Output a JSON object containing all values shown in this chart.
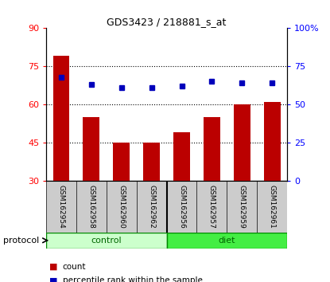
{
  "title": "GDS3423 / 218881_s_at",
  "samples": [
    "GSM162954",
    "GSM162958",
    "GSM162960",
    "GSM162962",
    "GSM162956",
    "GSM162957",
    "GSM162959",
    "GSM162961"
  ],
  "counts": [
    79,
    55,
    45,
    45,
    49,
    55,
    60,
    61
  ],
  "percentiles": [
    68,
    63,
    61,
    61,
    62,
    65,
    64,
    64
  ],
  "groups": [
    "control",
    "control",
    "control",
    "control",
    "diet",
    "diet",
    "diet",
    "diet"
  ],
  "left_ylim": [
    30,
    90
  ],
  "left_yticks": [
    30,
    45,
    60,
    75,
    90
  ],
  "right_ylim": [
    0,
    100
  ],
  "right_yticks": [
    0,
    25,
    50,
    75,
    100
  ],
  "right_yticklabels": [
    "0",
    "25",
    "50",
    "75",
    "100%"
  ],
  "bar_color": "#bb0000",
  "dot_color": "#0000bb",
  "control_color": "#ccffcc",
  "diet_color": "#44ee44",
  "label_area_color": "#cccccc",
  "protocol_label": "protocol",
  "control_label": "control",
  "diet_label": "diet",
  "legend_count": "count",
  "legend_percentile": "percentile rank within the sample"
}
